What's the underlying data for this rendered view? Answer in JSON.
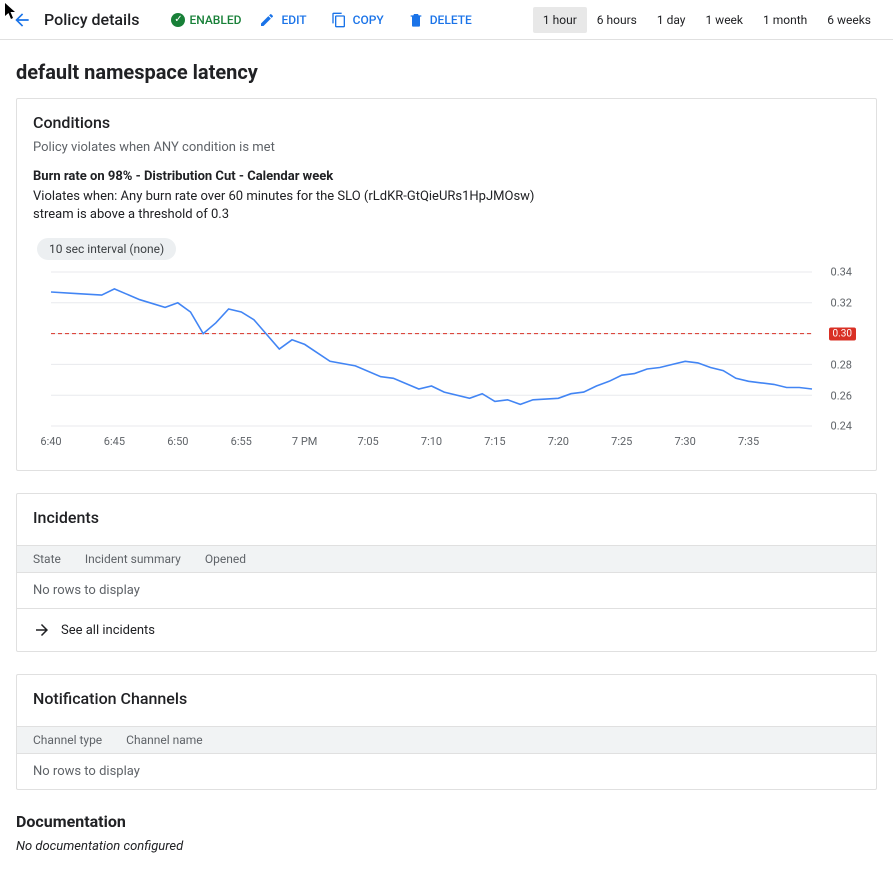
{
  "header": {
    "title": "Policy details",
    "status_label": "ENABLED",
    "edit_label": "EDIT",
    "copy_label": "COPY",
    "delete_label": "DELETE"
  },
  "time_ranges": {
    "items": [
      "1 hour",
      "6 hours",
      "1 day",
      "1 week",
      "1 month",
      "6 weeks"
    ],
    "active_index": 0
  },
  "policy": {
    "name": "default namespace latency"
  },
  "conditions": {
    "title": "Conditions",
    "subtitle": "Policy violates when ANY condition is met",
    "cond_title": "Burn rate on 98% - Distribution Cut - Calendar week",
    "cond_line1": "Violates when: Any burn rate over 60 minutes for the SLO (rLdKR-GtQieURs1HpJMOsw)",
    "cond_line2": "stream is above a threshold of 0.3",
    "interval_pill": "10 sec interval (none)"
  },
  "chart": {
    "type": "line",
    "ylim": [
      0.24,
      0.34
    ],
    "yticks": [
      0.24,
      0.26,
      0.28,
      0.3,
      0.32,
      0.34
    ],
    "threshold": 0.3,
    "threshold_label": "0.30",
    "threshold_color": "#d93025",
    "line_color": "#4285f4",
    "line_width": 1.6,
    "grid_color": "#e8eaed",
    "background_color": "#ffffff",
    "tick_color": "#5f6368",
    "tick_fontsize": 11,
    "x_labels": [
      "6:40",
      "6:45",
      "6:50",
      "6:55",
      "7 PM",
      "7:05",
      "7:10",
      "7:15",
      "7:20",
      "7:25",
      "7:30",
      "7:35"
    ],
    "x_step_minutes": 5,
    "series": [
      [
        0,
        0.327
      ],
      [
        2,
        0.326
      ],
      [
        4,
        0.325
      ],
      [
        5,
        0.329
      ],
      [
        7,
        0.322
      ],
      [
        9,
        0.317
      ],
      [
        10,
        0.32
      ],
      [
        11,
        0.314
      ],
      [
        12,
        0.3
      ],
      [
        13,
        0.307
      ],
      [
        14,
        0.316
      ],
      [
        15,
        0.314
      ],
      [
        16,
        0.309
      ],
      [
        18,
        0.29
      ],
      [
        19,
        0.296
      ],
      [
        20,
        0.293
      ],
      [
        22,
        0.282
      ],
      [
        24,
        0.279
      ],
      [
        26,
        0.272
      ],
      [
        27,
        0.271
      ],
      [
        29,
        0.264
      ],
      [
        30,
        0.266
      ],
      [
        31,
        0.262
      ],
      [
        33,
        0.258
      ],
      [
        34,
        0.261
      ],
      [
        35,
        0.256
      ],
      [
        36,
        0.257
      ],
      [
        37,
        0.254
      ],
      [
        38,
        0.257
      ],
      [
        40,
        0.258
      ],
      [
        41,
        0.261
      ],
      [
        42,
        0.262
      ],
      [
        43,
        0.266
      ],
      [
        44,
        0.269
      ],
      [
        45,
        0.273
      ],
      [
        46,
        0.274
      ],
      [
        47,
        0.277
      ],
      [
        48,
        0.278
      ],
      [
        49,
        0.28
      ],
      [
        50,
        0.282
      ],
      [
        51,
        0.281
      ],
      [
        52,
        0.278
      ],
      [
        53,
        0.276
      ],
      [
        54,
        0.271
      ],
      [
        55,
        0.269
      ],
      [
        56,
        0.268
      ],
      [
        57,
        0.267
      ],
      [
        58,
        0.265
      ],
      [
        59,
        0.265
      ],
      [
        60,
        0.264
      ]
    ],
    "x_domain": [
      0,
      60
    ]
  },
  "incidents": {
    "title": "Incidents",
    "columns": [
      "State",
      "Incident summary",
      "Opened"
    ],
    "empty_text": "No rows to display",
    "see_all_label": "See all incidents"
  },
  "channels": {
    "title": "Notification Channels",
    "columns": [
      "Channel type",
      "Channel name"
    ],
    "empty_text": "No rows to display"
  },
  "documentation": {
    "title": "Documentation",
    "empty_text": "No documentation configured"
  }
}
